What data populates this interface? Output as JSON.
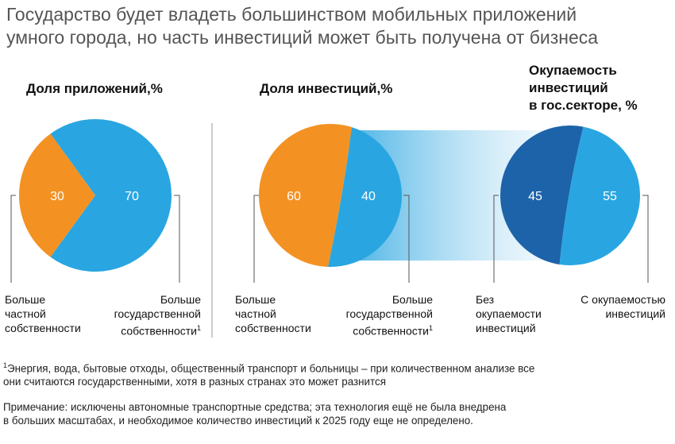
{
  "title_line1": "Государство будет владеть большинством мобильных приложений",
  "title_line2": "умного города, но часть инвестиций может быть получена от бизнеса",
  "colors": {
    "orange": "#F39223",
    "light_blue": "#29A6E1",
    "dark_blue": "#1D63A9",
    "divider": "#999999",
    "leader": "#555555"
  },
  "chart_data": [
    {
      "type": "pie",
      "title": "Доля приложений,%",
      "slices": [
        {
          "label": "Больше частной собственности",
          "value": 30,
          "color": "#F39223"
        },
        {
          "label": "Больше государственной собственности",
          "value": 70,
          "color": "#29A6E1"
        }
      ]
    },
    {
      "type": "pie",
      "title": "Доля инвестиций,%",
      "slices": [
        {
          "label": "Больше частной собственности",
          "value": 60,
          "color": "#F39223"
        },
        {
          "label": "Больше государственной собственности",
          "value": 40,
          "color": "#29A6E1"
        }
      ]
    },
    {
      "type": "pie",
      "title": "Окупаемость инвестиций в гос.секторе, %",
      "slices": [
        {
          "label": "Без окупаемости инвестиций",
          "value": 45,
          "color": "#1D63A9"
        },
        {
          "label": "С окупаемостью инвестиций",
          "value": 55,
          "color": "#29A6E1"
        }
      ]
    }
  ],
  "headings": {
    "apps": "Доля приложений,%",
    "invest": "Доля инвестиций,%",
    "payback_l1": "Окупаемость",
    "payback_l2": "инвестиций",
    "payback_l3": "в гос.секторе, %"
  },
  "captions": {
    "more": "Больше",
    "private_l2": "частной",
    "private_l3": "собственности",
    "state_l2": "государственной",
    "state_l3": "собственности",
    "footnote_mark": "1",
    "nopay_l1": "Без",
    "nopay_l2": "окупаемости",
    "nopay_l3": "инвестиций",
    "pay_l1": "С окупаемостью",
    "pay_l2": "инвестиций"
  },
  "footnote": {
    "mark": "1",
    "line1": "Энергия, вода, бытовые отходы, общественный транспорт и больницы – при количественном анализе все",
    "line2": "они считаются государственными, хотя в разных странах это может разнится"
  },
  "note": {
    "line1": "Примечание: исключены автономные транспортные средства; эта технология ещё не была внедрена",
    "line2": "в больших масштабах, и необходимое количество инвестиций к 2025 году еще не определено."
  }
}
